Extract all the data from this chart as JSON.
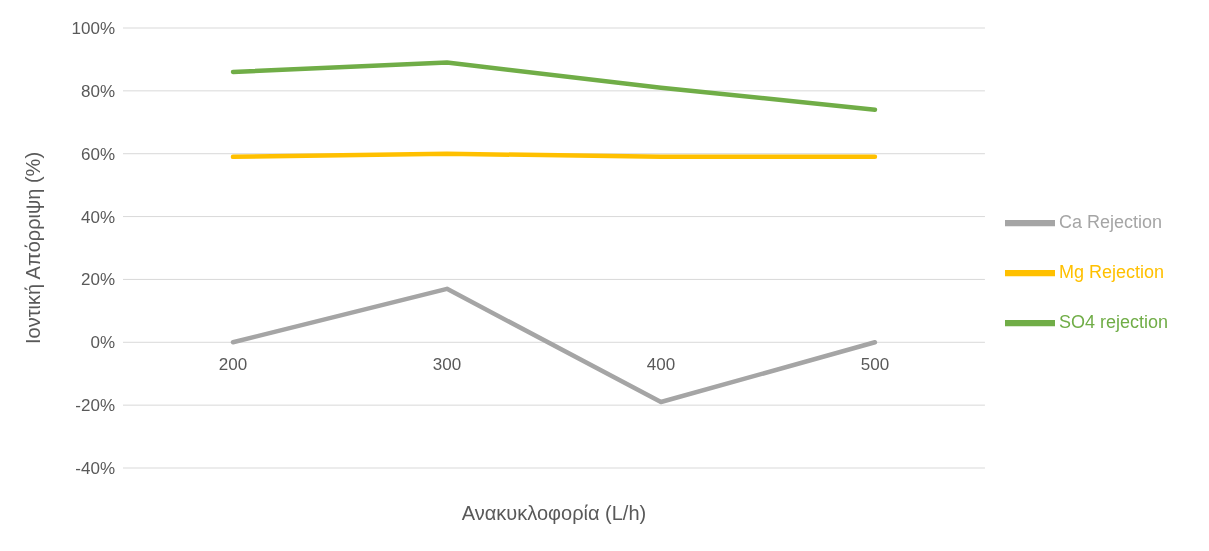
{
  "chart_data": {
    "type": "line",
    "xlabel": "Ανακυκλοφορία (L/h)",
    "ylabel": "Ιοντική Απόρριψη (%)",
    "categories": [
      "200",
      "300",
      "400",
      "500"
    ],
    "series": [
      {
        "name": "Ca Rejection",
        "color": "#a5a5a5",
        "values": [
          0,
          17,
          -19,
          0
        ]
      },
      {
        "name": "Mg Rejection",
        "color": "#ffc000",
        "values": [
          59,
          60,
          59,
          59
        ]
      },
      {
        "name": "SO4 rejection",
        "color": "#70ad47",
        "values": [
          86,
          89,
          81,
          74
        ]
      }
    ],
    "ylim": [
      -40,
      100
    ],
    "yticks": [
      {
        "value": -40,
        "label": "-40%"
      },
      {
        "value": -20,
        "label": "-20%"
      },
      {
        "value": 0,
        "label": "0%"
      },
      {
        "value": 20,
        "label": "20%"
      },
      {
        "value": 40,
        "label": "40%"
      },
      {
        "value": 60,
        "label": "60%"
      },
      {
        "value": 80,
        "label": "80%"
      },
      {
        "value": 100,
        "label": "100%"
      }
    ],
    "grid": "y",
    "legend": "right",
    "marker": "none",
    "line_style": "solid"
  }
}
